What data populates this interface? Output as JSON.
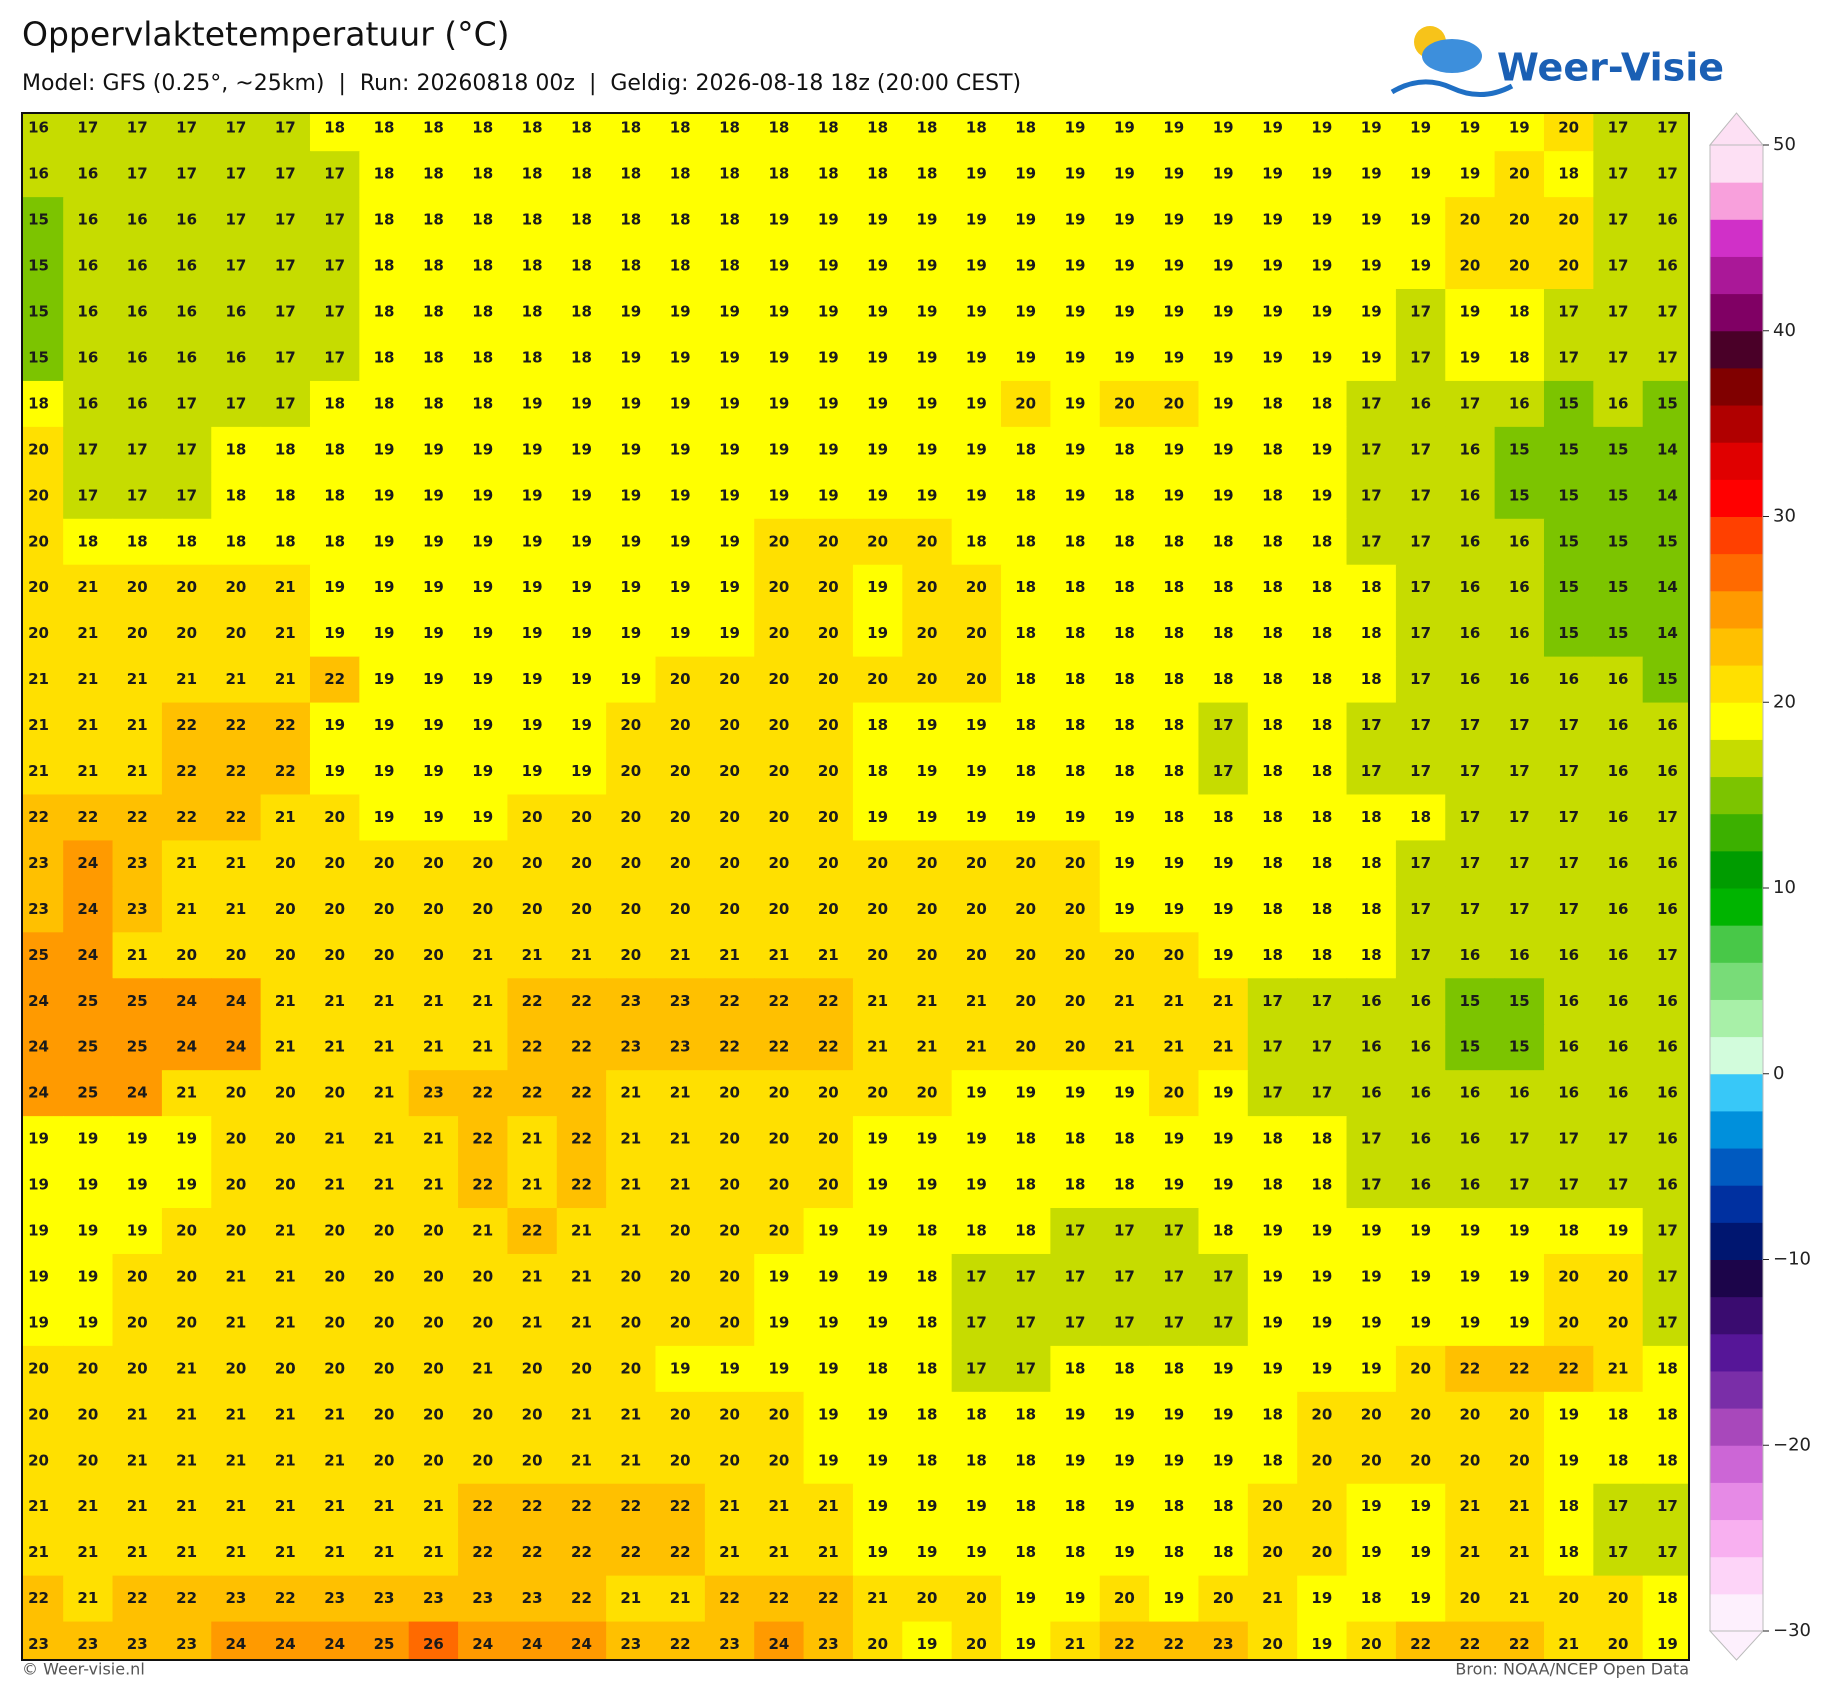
{
  "header": {
    "title": "Oppervlaktetemperatuur (°C)",
    "subtitle": "Model: GFS (0.25°, ~25km)  |  Run: 20260818 00z  |  Geldig: 2026-08-18 18z (20:00 CEST)"
  },
  "logo": {
    "text": "Weer-Visie"
  },
  "grid": {
    "rows": [
      [
        16,
        17,
        17,
        17,
        17,
        17,
        18,
        18,
        18,
        18,
        18,
        18,
        18,
        18,
        18,
        18,
        18,
        18,
        18,
        18,
        18,
        19,
        19,
        19,
        19,
        19,
        19,
        19,
        19,
        19,
        19,
        20,
        17,
        17
      ],
      [
        16,
        16,
        17,
        17,
        17,
        17,
        17,
        18,
        18,
        18,
        18,
        18,
        18,
        18,
        18,
        18,
        18,
        18,
        18,
        19,
        19,
        19,
        19,
        19,
        19,
        19,
        19,
        19,
        19,
        19,
        20,
        18,
        17,
        17
      ],
      [
        15,
        16,
        16,
        16,
        17,
        17,
        17,
        18,
        18,
        18,
        18,
        18,
        18,
        18,
        18,
        19,
        19,
        19,
        19,
        19,
        19,
        19,
        19,
        19,
        19,
        19,
        19,
        19,
        19,
        20,
        20,
        20,
        17,
        16
      ],
      [
        15,
        16,
        16,
        16,
        17,
        17,
        17,
        18,
        18,
        18,
        18,
        18,
        18,
        18,
        18,
        19,
        19,
        19,
        19,
        19,
        19,
        19,
        19,
        19,
        19,
        19,
        19,
        19,
        19,
        20,
        20,
        20,
        17,
        16
      ],
      [
        15,
        16,
        16,
        16,
        16,
        17,
        17,
        18,
        18,
        18,
        18,
        18,
        19,
        19,
        19,
        19,
        19,
        19,
        19,
        19,
        19,
        19,
        19,
        19,
        19,
        19,
        19,
        19,
        17,
        19,
        18,
        17,
        17,
        17
      ],
      [
        15,
        16,
        16,
        16,
        16,
        17,
        17,
        18,
        18,
        18,
        18,
        18,
        19,
        19,
        19,
        19,
        19,
        19,
        19,
        19,
        19,
        19,
        19,
        19,
        19,
        19,
        19,
        19,
        17,
        19,
        18,
        17,
        17,
        17
      ],
      [
        18,
        16,
        16,
        17,
        17,
        17,
        18,
        18,
        18,
        18,
        19,
        19,
        19,
        19,
        19,
        19,
        19,
        19,
        19,
        19,
        20,
        19,
        20,
        20,
        19,
        18,
        18,
        17,
        16,
        17,
        16,
        15,
        16,
        15
      ],
      [
        20,
        17,
        17,
        17,
        18,
        18,
        18,
        19,
        19,
        19,
        19,
        19,
        19,
        19,
        19,
        19,
        19,
        19,
        19,
        19,
        18,
        19,
        18,
        19,
        19,
        18,
        19,
        17,
        17,
        16,
        15,
        15,
        15,
        14
      ],
      [
        20,
        17,
        17,
        17,
        18,
        18,
        18,
        19,
        19,
        19,
        19,
        19,
        19,
        19,
        19,
        19,
        19,
        19,
        19,
        19,
        18,
        19,
        18,
        19,
        19,
        18,
        19,
        17,
        17,
        16,
        15,
        15,
        15,
        14
      ],
      [
        20,
        18,
        18,
        18,
        18,
        18,
        18,
        19,
        19,
        19,
        19,
        19,
        19,
        19,
        19,
        20,
        20,
        20,
        20,
        18,
        18,
        18,
        18,
        18,
        18,
        18,
        18,
        17,
        17,
        16,
        16,
        15,
        15,
        15
      ],
      [
        20,
        21,
        20,
        20,
        20,
        21,
        19,
        19,
        19,
        19,
        19,
        19,
        19,
        19,
        19,
        20,
        20,
        19,
        20,
        20,
        18,
        18,
        18,
        18,
        18,
        18,
        18,
        18,
        17,
        16,
        16,
        15,
        15,
        14
      ],
      [
        20,
        21,
        20,
        20,
        20,
        21,
        19,
        19,
        19,
        19,
        19,
        19,
        19,
        19,
        19,
        20,
        20,
        19,
        20,
        20,
        18,
        18,
        18,
        18,
        18,
        18,
        18,
        18,
        17,
        16,
        16,
        15,
        15,
        14
      ],
      [
        21,
        21,
        21,
        21,
        21,
        21,
        22,
        19,
        19,
        19,
        19,
        19,
        19,
        20,
        20,
        20,
        20,
        20,
        20,
        20,
        18,
        18,
        18,
        18,
        18,
        18,
        18,
        18,
        17,
        16,
        16,
        16,
        16,
        15
      ],
      [
        21,
        21,
        21,
        22,
        22,
        22,
        19,
        19,
        19,
        19,
        19,
        19,
        20,
        20,
        20,
        20,
        20,
        18,
        19,
        19,
        18,
        18,
        18,
        18,
        17,
        18,
        18,
        17,
        17,
        17,
        17,
        17,
        16,
        16
      ],
      [
        21,
        21,
        21,
        22,
        22,
        22,
        19,
        19,
        19,
        19,
        19,
        19,
        20,
        20,
        20,
        20,
        20,
        18,
        19,
        19,
        18,
        18,
        18,
        18,
        17,
        18,
        18,
        17,
        17,
        17,
        17,
        17,
        16,
        16
      ],
      [
        22,
        22,
        22,
        22,
        22,
        21,
        20,
        19,
        19,
        19,
        20,
        20,
        20,
        20,
        20,
        20,
        20,
        19,
        19,
        19,
        19,
        19,
        19,
        18,
        18,
        18,
        18,
        18,
        18,
        17,
        17,
        17,
        16,
        17
      ],
      [
        23,
        24,
        23,
        21,
        21,
        20,
        20,
        20,
        20,
        20,
        20,
        20,
        20,
        20,
        20,
        20,
        20,
        20,
        20,
        20,
        20,
        20,
        19,
        19,
        19,
        18,
        18,
        18,
        17,
        17,
        17,
        17,
        16,
        16
      ],
      [
        23,
        24,
        23,
        21,
        21,
        20,
        20,
        20,
        20,
        20,
        20,
        20,
        20,
        20,
        20,
        20,
        20,
        20,
        20,
        20,
        20,
        20,
        19,
        19,
        19,
        18,
        18,
        18,
        17,
        17,
        17,
        17,
        16,
        16
      ],
      [
        25,
        24,
        21,
        20,
        20,
        20,
        20,
        20,
        20,
        21,
        21,
        21,
        20,
        21,
        21,
        21,
        21,
        20,
        20,
        20,
        20,
        20,
        20,
        20,
        19,
        18,
        18,
        18,
        17,
        16,
        16,
        16,
        16,
        17
      ],
      [
        24,
        25,
        25,
        24,
        24,
        21,
        21,
        21,
        21,
        21,
        22,
        22,
        23,
        23,
        22,
        22,
        22,
        21,
        21,
        21,
        20,
        20,
        21,
        21,
        21,
        17,
        17,
        16,
        16,
        15,
        15,
        16,
        16,
        16
      ],
      [
        24,
        25,
        25,
        24,
        24,
        21,
        21,
        21,
        21,
        21,
        22,
        22,
        23,
        23,
        22,
        22,
        22,
        21,
        21,
        21,
        20,
        20,
        21,
        21,
        21,
        17,
        17,
        16,
        16,
        15,
        15,
        16,
        16,
        16
      ],
      [
        24,
        25,
        24,
        21,
        20,
        20,
        20,
        21,
        23,
        22,
        22,
        22,
        21,
        21,
        20,
        20,
        20,
        20,
        20,
        19,
        19,
        19,
        19,
        20,
        19,
        17,
        17,
        16,
        16,
        16,
        16,
        16,
        16,
        16
      ],
      [
        19,
        19,
        19,
        19,
        20,
        20,
        21,
        21,
        21,
        22,
        21,
        22,
        21,
        21,
        20,
        20,
        20,
        19,
        19,
        19,
        18,
        18,
        18,
        19,
        19,
        18,
        18,
        17,
        16,
        16,
        17,
        17,
        17,
        16
      ],
      [
        19,
        19,
        19,
        19,
        20,
        20,
        21,
        21,
        21,
        22,
        21,
        22,
        21,
        21,
        20,
        20,
        20,
        19,
        19,
        19,
        18,
        18,
        18,
        19,
        19,
        18,
        18,
        17,
        16,
        16,
        17,
        17,
        17,
        16
      ],
      [
        19,
        19,
        19,
        20,
        20,
        21,
        20,
        20,
        20,
        21,
        22,
        21,
        21,
        20,
        20,
        20,
        19,
        19,
        18,
        18,
        18,
        17,
        17,
        17,
        18,
        19,
        19,
        19,
        19,
        19,
        19,
        18,
        19,
        17
      ],
      [
        19,
        19,
        20,
        20,
        21,
        21,
        20,
        20,
        20,
        20,
        21,
        21,
        20,
        20,
        20,
        19,
        19,
        19,
        18,
        17,
        17,
        17,
        17,
        17,
        17,
        19,
        19,
        19,
        19,
        19,
        19,
        20,
        20,
        17
      ],
      [
        19,
        19,
        20,
        20,
        21,
        21,
        20,
        20,
        20,
        20,
        21,
        21,
        20,
        20,
        20,
        19,
        19,
        19,
        18,
        17,
        17,
        17,
        17,
        17,
        17,
        19,
        19,
        19,
        19,
        19,
        19,
        20,
        20,
        17
      ],
      [
        20,
        20,
        20,
        21,
        20,
        20,
        20,
        20,
        20,
        21,
        20,
        20,
        20,
        19,
        19,
        19,
        19,
        18,
        18,
        17,
        17,
        18,
        18,
        18,
        19,
        19,
        19,
        19,
        20,
        22,
        22,
        22,
        21,
        18
      ],
      [
        20,
        20,
        21,
        21,
        21,
        21,
        21,
        20,
        20,
        20,
        20,
        21,
        21,
        20,
        20,
        20,
        19,
        19,
        18,
        18,
        18,
        19,
        19,
        19,
        19,
        18,
        20,
        20,
        20,
        20,
        20,
        19,
        18,
        18
      ],
      [
        20,
        20,
        21,
        21,
        21,
        21,
        21,
        20,
        20,
        20,
        20,
        21,
        21,
        20,
        20,
        20,
        19,
        19,
        18,
        18,
        18,
        19,
        19,
        19,
        19,
        18,
        20,
        20,
        20,
        20,
        20,
        19,
        18,
        18
      ],
      [
        21,
        21,
        21,
        21,
        21,
        21,
        21,
        21,
        21,
        22,
        22,
        22,
        22,
        22,
        21,
        21,
        21,
        19,
        19,
        19,
        18,
        18,
        19,
        18,
        18,
        20,
        20,
        19,
        19,
        21,
        21,
        18,
        17,
        17
      ],
      [
        21,
        21,
        21,
        21,
        21,
        21,
        21,
        21,
        21,
        22,
        22,
        22,
        22,
        22,
        21,
        21,
        21,
        19,
        19,
        19,
        18,
        18,
        19,
        18,
        18,
        20,
        20,
        19,
        19,
        21,
        21,
        18,
        17,
        17
      ],
      [
        22,
        21,
        22,
        22,
        23,
        22,
        23,
        23,
        23,
        23,
        23,
        22,
        21,
        21,
        22,
        22,
        22,
        21,
        20,
        20,
        19,
        19,
        20,
        19,
        20,
        21,
        19,
        18,
        19,
        20,
        21,
        20,
        20,
        18
      ],
      [
        23,
        23,
        23,
        23,
        24,
        24,
        24,
        25,
        26,
        24,
        24,
        24,
        23,
        22,
        23,
        24,
        23,
        20,
        19,
        20,
        19,
        21,
        22,
        22,
        23,
        20,
        19,
        20,
        22,
        22,
        22,
        21,
        20,
        19
      ]
    ]
  },
  "colorbar": {
    "lim": [
      -30,
      50
    ],
    "ticks": [
      50,
      40,
      30,
      20,
      10,
      0,
      {
        "value": -10,
        "label": "−10"
      },
      {
        "value": -20,
        "label": "−20"
      },
      {
        "value": -30,
        "label": "−30"
      }
    ],
    "colors": [
      "#fdf0fd",
      "#fdd4f8",
      "#f8b0f0",
      "#e68ae6",
      "#cc66d6",
      "#a848bb",
      "#7a2ea8",
      "#561698",
      "#3a0c70",
      "#1c054a",
      "#001670",
      "#0030a0",
      "#005ac0",
      "#0090dc",
      "#38c8f8",
      "#d2fcdc",
      "#a8f0a8",
      "#78dc78",
      "#48c848",
      "#00b400",
      "#009c00",
      "#3cb000",
      "#7cc400",
      "#c6dc00",
      "#ffff00",
      "#ffe000",
      "#ffc000",
      "#ff9a00",
      "#ff6a00",
      "#ff4000",
      "#ff0000",
      "#e00000",
      "#b00000",
      "#800000",
      "#4a0028",
      "#800064",
      "#aa1898",
      "#d030c8",
      "#f8a0dc",
      "#fde0f4"
    ]
  },
  "footer": {
    "left": "© Weer-visie.nl",
    "right": "Bron: NOAA/NCEP Open Data"
  }
}
